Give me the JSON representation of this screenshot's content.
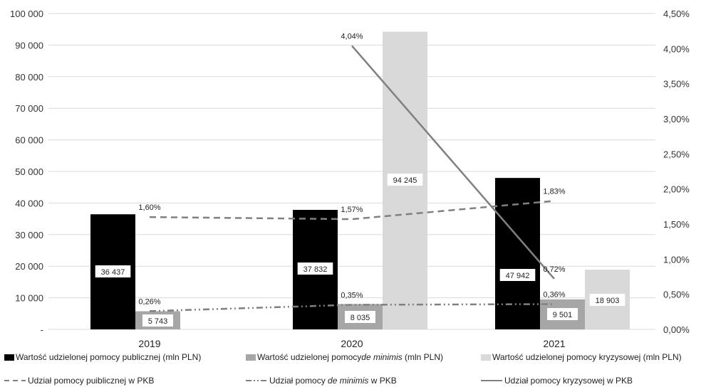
{
  "chart_data": {
    "type": "bar",
    "categories": [
      "2019",
      "2020",
      "2021"
    ],
    "left_axis": {
      "ylim": [
        0,
        100000
      ],
      "ticks": [
        {
          "value": 0,
          "label": "-"
        },
        {
          "value": 10000,
          "label": "10 000"
        },
        {
          "value": 20000,
          "label": "20 000"
        },
        {
          "value": 30000,
          "label": "30 000"
        },
        {
          "value": 40000,
          "label": "40 000"
        },
        {
          "value": 50000,
          "label": "50 000"
        },
        {
          "value": 60000,
          "label": "60 000"
        },
        {
          "value": 70000,
          "label": "70 000"
        },
        {
          "value": 80000,
          "label": "80 000"
        },
        {
          "value": 90000,
          "label": "90 000"
        },
        {
          "value": 100000,
          "label": "100 000"
        }
      ]
    },
    "right_axis": {
      "ylim": [
        0,
        4.5
      ],
      "ticks": [
        {
          "value": 0,
          "label": "0,00%"
        },
        {
          "value": 0.5,
          "label": "0,50%"
        },
        {
          "value": 1.0,
          "label": "1,00%"
        },
        {
          "value": 1.5,
          "label": "1,50%"
        },
        {
          "value": 2.0,
          "label": "2,00%"
        },
        {
          "value": 2.5,
          "label": "2,50%"
        },
        {
          "value": 3.0,
          "label": "3,00%"
        },
        {
          "value": 3.5,
          "label": "3,50%"
        },
        {
          "value": 4.0,
          "label": "4,00%"
        },
        {
          "value": 4.5,
          "label": "4,50%"
        }
      ]
    },
    "grid": true,
    "bar_series": [
      {
        "name": "Wartość udzielonej pomocy publicznej (mln PLN)",
        "color": "#000000",
        "label_color": "#ffffff",
        "values": [
          36437,
          37832,
          47942
        ],
        "labels": [
          "36 437",
          "37 832",
          "47 942"
        ]
      },
      {
        "name": "Wartość udzielonej pomocy de minimis (mln PLN)",
        "color": "#a6a6a6",
        "label_color": "#ffffff",
        "values": [
          5743,
          8035,
          9501
        ],
        "labels": [
          "5 743",
          "8 035",
          "9 501"
        ]
      },
      {
        "name": "Wartość udzielonej pomocy kryzysowej (mln PLN)",
        "color": "#d9d9d9",
        "label_color": "#ffffff",
        "values": [
          null,
          94245,
          18903
        ],
        "labels": [
          "",
          "94 245",
          "18 903"
        ]
      }
    ],
    "line_series": [
      {
        "name": "Udział pomocy puiblicznej w PKB",
        "color": "#808080",
        "dash": "dashed",
        "values": [
          1.6,
          1.57,
          1.83
        ],
        "labels": [
          "1,60%",
          "1,57%",
          "1,83%"
        ]
      },
      {
        "name": "Udział pomocy de minimis w PKB",
        "color": "#808080",
        "dash": "dashdotdot",
        "values": [
          0.26,
          0.35,
          0.36
        ],
        "labels": [
          "0,26%",
          "0,35%",
          "0,36%"
        ]
      },
      {
        "name": "Udział pomocy kryzysowej w PKB",
        "color": "#808080",
        "dash": "solid",
        "values": [
          null,
          4.04,
          0.72
        ],
        "labels": [
          "",
          "4,04%",
          "0,72%"
        ]
      }
    ],
    "legend": {
      "position": "bottom",
      "row1": [
        {
          "pre": "Wartość udzielonej pomocy publicznej (mln PLN)",
          "italic": "",
          "post": ""
        },
        {
          "pre": "Wartość udzielonej pomocy ",
          "italic": "de minimis",
          "post": " (mln PLN)"
        },
        {
          "pre": "Wartość udzielonej pomocy kryzysowej (mln PLN)",
          "italic": "",
          "post": ""
        }
      ],
      "row2": [
        {
          "pre": "Udział pomocy puiblicznej w PKB",
          "italic": "",
          "post": ""
        },
        {
          "pre": "Udział pomocy ",
          "italic": "de minimis",
          "post": " w PKB"
        },
        {
          "pre": "Udział pomocy kryzysowej w PKB",
          "italic": "",
          "post": ""
        }
      ]
    }
  }
}
